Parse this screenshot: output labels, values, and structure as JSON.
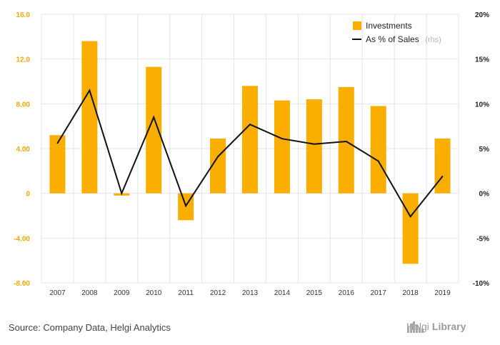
{
  "colors": {
    "bar": "#F9AE00",
    "line": "#111111",
    "left_ticks": "#F2A800",
    "grid": "#e6e6e6",
    "source_text": "#444444",
    "brand": "#9a9a9a"
  },
  "legend": {
    "bar_label": "Investments",
    "line_label": "As % of Sales",
    "line_suffix": "(rhs)",
    "placement": "top-right"
  },
  "footer": {
    "source": "Source: Company Data, Helgi Analytics",
    "brand_part1": "Helgi",
    "brand_part2": "Library",
    "brand_icon": "library-buildings-icon"
  },
  "chart_data": {
    "type": "bar+line",
    "categories": [
      "2007",
      "2008",
      "2009",
      "2010",
      "2011",
      "2012",
      "2013",
      "2014",
      "2015",
      "2016",
      "2017",
      "2018",
      "2019"
    ],
    "series": [
      {
        "name": "Investments",
        "type": "bar",
        "axis": "left",
        "values": [
          5.2,
          13.6,
          -0.2,
          11.3,
          -2.4,
          4.9,
          9.6,
          8.3,
          8.4,
          9.5,
          7.8,
          -6.3,
          4.9
        ]
      },
      {
        "name": "As % of Sales",
        "type": "line",
        "axis": "right",
        "values": [
          5.6,
          11.5,
          0.0,
          8.5,
          -1.4,
          4.1,
          7.7,
          6.1,
          5.5,
          5.8,
          3.6,
          -2.6,
          1.9
        ]
      }
    ],
    "left_axis": {
      "min": -8,
      "max": 16,
      "ticks": [
        "-8.00",
        "-4.00",
        "0",
        "4.00",
        "8.00",
        "12.0",
        "16.0"
      ]
    },
    "right_axis": {
      "min": -10,
      "max": 20,
      "ticks": [
        "-10%",
        "-5%",
        "0%",
        "5%",
        "10%",
        "15%",
        "20%"
      ]
    },
    "grid": true
  }
}
